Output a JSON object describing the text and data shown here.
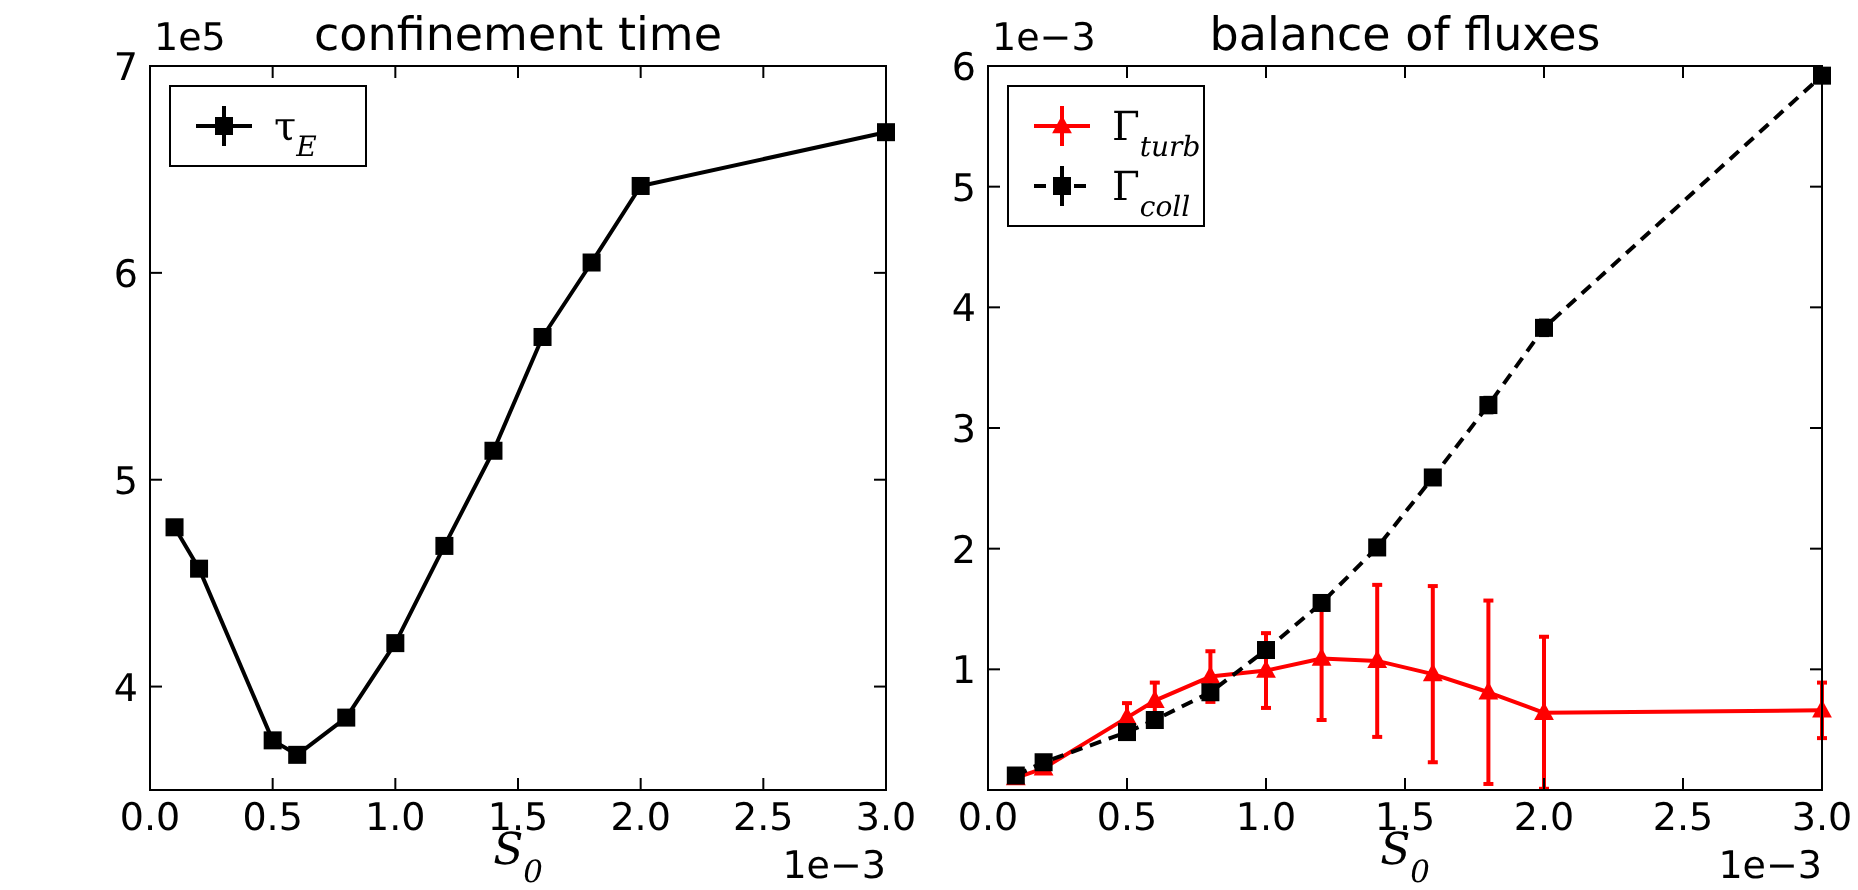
{
  "chart_data": [
    {
      "type": "line",
      "title": "confinement time",
      "xlabel": "S$_{0}$",
      "x": [
        0.1,
        0.2,
        0.5,
        0.6,
        0.8,
        1.0,
        1.2,
        1.4,
        1.6,
        1.8,
        2.0,
        3.0
      ],
      "series": [
        {
          "name": "τ$_{E}$",
          "color": "#000000",
          "marker": "square",
          "line_style": "solid",
          "values": [
            4.77,
            4.57,
            3.74,
            3.67,
            3.85,
            4.21,
            4.68,
            5.14,
            5.69,
            6.05,
            6.42,
            6.68
          ],
          "errors": [
            null,
            null,
            null,
            null,
            null,
            null,
            null,
            null,
            0.02,
            0.03,
            0.03,
            null
          ]
        }
      ],
      "xlim": [
        0,
        3
      ],
      "xticks": [
        {
          "value": 0,
          "label": "0.0"
        },
        {
          "value": 0.5,
          "label": "0.5"
        },
        {
          "value": 1,
          "label": "1.0"
        },
        {
          "value": 1.5,
          "label": "1.5"
        },
        {
          "value": 2,
          "label": "2.0"
        },
        {
          "value": 2.5,
          "label": "2.5"
        },
        {
          "value": 3,
          "label": "3.0"
        }
      ],
      "ylim": [
        3.5,
        7
      ],
      "yticks": [
        4,
        5,
        6,
        7
      ],
      "legend": "top left",
      "grid": false,
      "annotations": [
        "1e5",
        "1e−3"
      ]
    },
    {
      "type": "line",
      "title": "balance of fluxes",
      "xlabel": "S$_{0}$",
      "x": [
        0.1,
        0.2,
        0.5,
        0.6,
        0.8,
        1.0,
        1.2,
        1.4,
        1.6,
        1.8,
        2.0,
        3.0
      ],
      "series": [
        {
          "name": "Γ$_{turb}$",
          "color": "#ff0000",
          "marker": "triangle",
          "line_style": "solid",
          "values": [
            0.1,
            0.18,
            0.6,
            0.74,
            0.94,
            0.99,
            1.09,
            1.07,
            0.96,
            0.81,
            0.64,
            0.66
          ],
          "errors": [
            null,
            null,
            0.12,
            0.15,
            0.21,
            0.31,
            0.51,
            0.63,
            0.73,
            0.76,
            0.63,
            0.23
          ]
        },
        {
          "name": "Γ$_{coll}$",
          "color": "#000000",
          "marker": "square",
          "line_style": "dashed",
          "values": [
            0.12,
            0.23,
            0.48,
            0.58,
            0.81,
            1.16,
            1.55,
            2.01,
            2.59,
            3.19,
            3.83,
            5.92
          ],
          "errors": [
            null,
            null,
            null,
            null,
            null,
            null,
            null,
            null,
            0.05,
            0.06,
            0.06,
            0.03
          ]
        }
      ],
      "xlim": [
        0,
        3
      ],
      "xticks": [
        {
          "value": 0,
          "label": "0.0"
        },
        {
          "value": 0.5,
          "label": "0.5"
        },
        {
          "value": 1,
          "label": "1.0"
        },
        {
          "value": 1.5,
          "label": "1.5"
        },
        {
          "value": 2,
          "label": "2.0"
        },
        {
          "value": 2.5,
          "label": "2.5"
        },
        {
          "value": 3,
          "label": "3.0"
        }
      ],
      "ylim": [
        0,
        6
      ],
      "yticks": [
        1,
        2,
        3,
        4,
        5,
        6
      ],
      "legend": "top left",
      "grid": false,
      "annotations": [
        "1e−3",
        "1e−3"
      ]
    }
  ]
}
